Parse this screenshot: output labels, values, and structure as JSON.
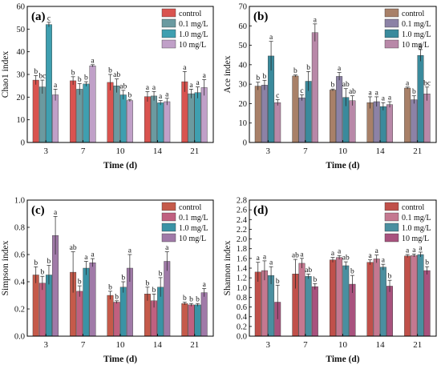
{
  "figure": {
    "background": "#ffffff"
  },
  "chart_data": [
    {
      "type": "bar",
      "panel_label": "(a)",
      "xlabel": "Time (d)",
      "ylabel": "Chao1 index",
      "ylim": [
        0,
        60
      ],
      "yticks": [
        0,
        10,
        20,
        30,
        40,
        50,
        60
      ],
      "categories": [
        "3",
        "7",
        "10",
        "14",
        "21"
      ],
      "colors": [
        "#d9534f",
        "#6b9aa0",
        "#3f9fb0",
        "#c0a0c8"
      ],
      "legend": {
        "position": "top-right",
        "entries": [
          "control",
          "0.1 mg/L",
          "1.0 mg/L",
          "10 mg/L"
        ]
      },
      "series": [
        {
          "name": "control",
          "values": [
            27.5,
            27.2,
            26.5,
            20.2,
            26.8
          ],
          "errors": [
            2.0,
            1.8,
            3.5,
            2.2,
            4.5
          ],
          "labels": [
            "b",
            "b",
            "b",
            "a",
            "a"
          ]
        },
        {
          "name": "0.1 mg/L",
          "values": [
            24.5,
            23.5,
            25.0,
            20.5,
            21.5
          ],
          "errors": [
            3.0,
            2.5,
            3.0,
            2.0,
            2.0
          ],
          "labels": [
            "bc",
            "b",
            "ab",
            "a",
            "a"
          ]
        },
        {
          "name": "1.0 mg/L",
          "values": [
            52.0,
            25.8,
            21.0,
            17.5,
            22.0
          ],
          "errors": [
            1.0,
            1.0,
            2.0,
            1.0,
            2.5
          ],
          "labels": [
            "c",
            "b",
            "ab",
            "a",
            "a"
          ]
        },
        {
          "name": "10 mg/L",
          "values": [
            21.0,
            33.8,
            18.5,
            18.0,
            24.2
          ],
          "errors": [
            2.5,
            0.5,
            0.5,
            1.5,
            3.5
          ],
          "labels": [
            "a",
            "a",
            "b",
            "a",
            "a"
          ]
        }
      ]
    },
    {
      "type": "bar",
      "panel_label": "(b)",
      "xlabel": "Time (d)",
      "ylabel": "Ace index",
      "ylim": [
        0,
        70
      ],
      "yticks": [
        0,
        10,
        20,
        30,
        40,
        50,
        60,
        70
      ],
      "categories": [
        "3",
        "7",
        "10",
        "14",
        "21"
      ],
      "colors": [
        "#a88068",
        "#8c82a6",
        "#3a8a9c",
        "#b888a8"
      ],
      "legend": {
        "position": "top-right",
        "entries": [
          "control",
          "0.1 mg/L",
          "1.0 mg/L",
          "10 mg/L"
        ]
      },
      "series": [
        {
          "name": "control",
          "values": [
            29.0,
            34.2,
            27.0,
            20.5,
            28.0
          ],
          "errors": [
            2.0,
            0.5,
            0.5,
            3.0,
            0.5
          ],
          "labels": [
            "b",
            "b",
            "b",
            "a",
            "a"
          ]
        },
        {
          "name": "0.1 mg/L",
          "values": [
            29.5,
            23.0,
            34.0,
            21.0,
            22.0
          ],
          "errors": [
            2.5,
            1.5,
            2.0,
            2.5,
            2.0
          ],
          "labels": [
            "b",
            "c",
            "a",
            "a",
            "b"
          ]
        },
        {
          "name": "1.0 mg/L",
          "values": [
            44.5,
            31.5,
            23.2,
            18.5,
            44.8
          ],
          "errors": [
            7.5,
            5.0,
            4.5,
            2.0,
            3.0
          ],
          "labels": [
            "a",
            "b",
            "ab",
            "a",
            "a"
          ]
        },
        {
          "name": "10 mg/L",
          "values": [
            20.5,
            56.5,
            21.5,
            19.5,
            25.0
          ],
          "errors": [
            1.5,
            4.5,
            2.5,
            1.5,
            3.5
          ],
          "labels": [
            "c",
            "a",
            "ab",
            "a",
            "bc"
          ]
        }
      ]
    },
    {
      "type": "bar",
      "panel_label": "(c)",
      "xlabel": "Time (d)",
      "ylabel": "Simpson index",
      "ylim": [
        0.0,
        1.0
      ],
      "yticks": [
        "0.0",
        "0.2",
        "0.4",
        "0.6",
        "0.8",
        "1.0"
      ],
      "categories": [
        "3",
        "7",
        "10",
        "14",
        "21"
      ],
      "colors": [
        "#c55a4a",
        "#c06080",
        "#3a93a5",
        "#a07aa8"
      ],
      "legend": {
        "position": "top-right",
        "entries": [
          "control",
          "0.1 mg/L",
          "1.0 mg/L",
          "10 mg/L"
        ]
      },
      "series": [
        {
          "name": "control",
          "values": [
            0.45,
            0.47,
            0.3,
            0.31,
            0.24
          ],
          "errors": [
            0.06,
            0.15,
            0.03,
            0.05,
            0.01
          ],
          "labels": [
            "b",
            "ab",
            "b",
            "b",
            "b"
          ]
        },
        {
          "name": "0.1 mg/L",
          "values": [
            0.39,
            0.33,
            0.25,
            0.26,
            0.23
          ],
          "errors": [
            0.05,
            0.04,
            0.01,
            0.05,
            0.01
          ],
          "labels": [
            "b",
            "b",
            "b",
            "b",
            "b"
          ]
        },
        {
          "name": "1.0 mg/L",
          "values": [
            0.45,
            0.5,
            0.36,
            0.36,
            0.23
          ],
          "errors": [
            0.07,
            0.05,
            0.04,
            0.07,
            0.01
          ],
          "labels": [
            "b",
            "a",
            "b",
            "b",
            "b"
          ]
        },
        {
          "name": "10 mg/L",
          "values": [
            0.74,
            0.54,
            0.5,
            0.55,
            0.32
          ],
          "errors": [
            0.14,
            0.03,
            0.1,
            0.07,
            0.03
          ],
          "labels": [
            "a",
            "a",
            "a",
            "a",
            "a"
          ]
        }
      ]
    },
    {
      "type": "bar",
      "panel_label": "(d)",
      "xlabel": "Time (d)",
      "ylabel": "Shannon index",
      "ylim": [
        0.0,
        2.8
      ],
      "yticks": [
        "0.0",
        "0.2",
        "0.4",
        "0.6",
        "0.8",
        "1.0",
        "1.2",
        "1.4",
        "1.6",
        "1.8",
        "2.0",
        "2.2",
        "2.4",
        "2.6",
        "2.8"
      ],
      "categories": [
        "3",
        "7",
        "10",
        "14",
        "21"
      ],
      "colors": [
        "#c0504a",
        "#c47890",
        "#4a8fa0",
        "#a8527e"
      ],
      "legend": {
        "position": "top-right",
        "entries": [
          "control",
          "0.1 mg/L",
          "1.0 mg/L",
          "10 mg/L"
        ]
      },
      "series": [
        {
          "name": "control",
          "values": [
            1.32,
            1.28,
            1.57,
            1.52,
            1.65
          ],
          "errors": [
            0.2,
            0.3,
            0.05,
            0.05,
            0.03
          ],
          "labels": [
            "a",
            "ab",
            "a",
            "a",
            "a"
          ]
        },
        {
          "name": "0.1 mg/L",
          "values": [
            1.35,
            1.5,
            1.62,
            1.59,
            1.66
          ],
          "errors": [
            0.2,
            0.1,
            0.04,
            0.08,
            0.03
          ],
          "labels": [
            "a",
            "a",
            "a",
            "a",
            "a"
          ]
        },
        {
          "name": "1.0 mg/L",
          "values": [
            1.25,
            1.23,
            1.45,
            1.42,
            1.68
          ],
          "errors": [
            0.18,
            0.05,
            0.08,
            0.06,
            0.05
          ],
          "labels": [
            "a",
            "ab",
            "ab",
            "a",
            "a"
          ]
        },
        {
          "name": "10 mg/L",
          "values": [
            0.7,
            1.02,
            1.07,
            1.03,
            1.35
          ],
          "errors": [
            0.35,
            0.06,
            0.18,
            0.12,
            0.08
          ],
          "labels": [
            "b",
            "b",
            "b",
            "b",
            "b"
          ]
        }
      ]
    }
  ]
}
